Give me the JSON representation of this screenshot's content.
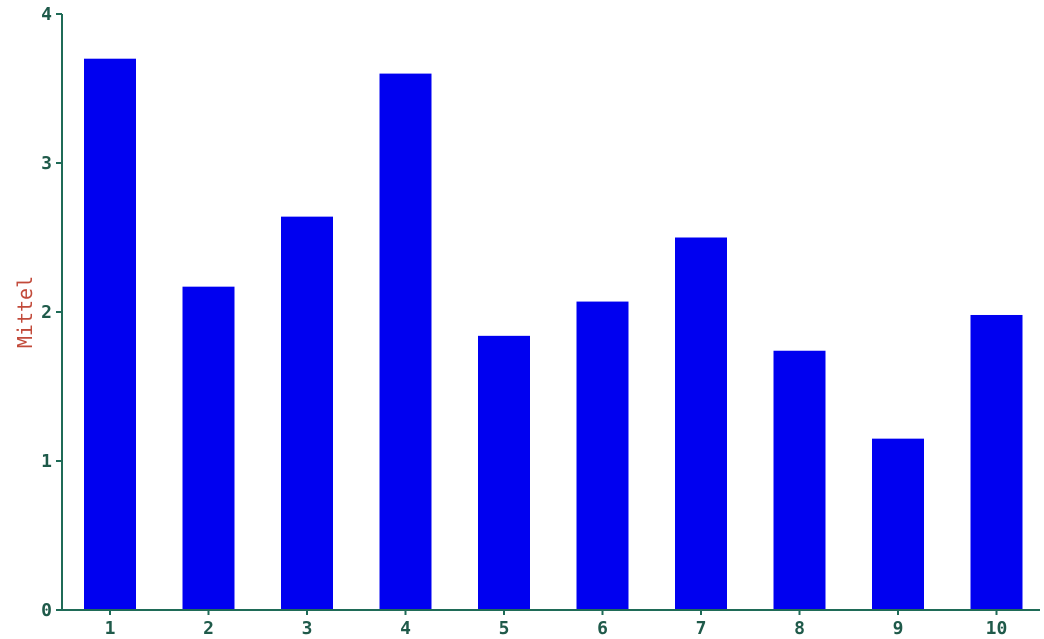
{
  "chart_data": {
    "type": "bar",
    "categories": [
      "1",
      "2",
      "3",
      "4",
      "5",
      "6",
      "7",
      "8",
      "9",
      "10"
    ],
    "values": [
      3.7,
      2.17,
      2.64,
      3.6,
      1.84,
      2.07,
      2.5,
      1.74,
      1.15,
      1.98
    ],
    "xlabel": "",
    "ylabel": "Mittel",
    "ylim": [
      0,
      4
    ],
    "yticks": [
      "0",
      "1",
      "2",
      "3",
      "4"
    ],
    "grid": false,
    "bar_color": "#0000f0",
    "axis_color": "#1f6b57",
    "ylabel_color": "#c24a3a"
  }
}
